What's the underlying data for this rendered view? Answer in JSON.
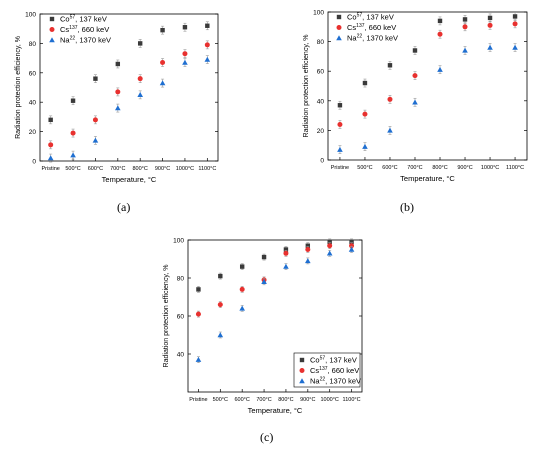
{
  "panel_labels": [
    "(a)",
    "(b)",
    "(c)"
  ],
  "chart_data": [
    {
      "type": "scatter",
      "title": "",
      "xlabel": "Temperature, °C",
      "ylabel": "Radiation protection efficiency, %",
      "categories": [
        "Pristine",
        "500°C",
        "600°C",
        "700°C",
        "800°C",
        "900°C",
        "1000°C",
        "1100°C"
      ],
      "ylim": [
        0,
        100
      ],
      "yticks": [
        0,
        20,
        40,
        60,
        80,
        100
      ],
      "legend_position": "top-left",
      "series": [
        {
          "name": "Co",
          "sup": "57",
          "suffix": ", 137 keV",
          "color": "#3a3a3a",
          "marker": "square",
          "values": [
            28,
            41,
            56,
            66,
            80,
            89,
            91,
            92
          ]
        },
        {
          "name": "Cs",
          "sup": "137",
          "suffix": ", 660 keV",
          "color": "#e8312f",
          "marker": "circle",
          "values": [
            11,
            19,
            28,
            47,
            56,
            67,
            73,
            79
          ]
        },
        {
          "name": "Na",
          "sup": "22",
          "suffix": ", 1370 keV",
          "color": "#1f6fd1",
          "marker": "triangle",
          "values": [
            2,
            4,
            14,
            36,
            45,
            53,
            67,
            69
          ]
        }
      ]
    },
    {
      "type": "scatter",
      "title": "",
      "xlabel": "Temperature, °C",
      "ylabel": "Radiation protection efficiency, %",
      "categories": [
        "Pristine",
        "500°C",
        "600°C",
        "700°C",
        "800°C",
        "900°C",
        "1000°C",
        "1100°C"
      ],
      "ylim": [
        0,
        100
      ],
      "yticks": [
        0,
        20,
        40,
        60,
        80,
        100
      ],
      "legend_position": "top-left",
      "series": [
        {
          "name": "Co",
          "sup": "57",
          "suffix": ", 137 keV",
          "color": "#3a3a3a",
          "marker": "square",
          "values": [
            37,
            52,
            64,
            74,
            94,
            95,
            96,
            97
          ]
        },
        {
          "name": "Cs",
          "sup": "137",
          "suffix": ", 660 keV",
          "color": "#e8312f",
          "marker": "circle",
          "values": [
            24,
            31,
            41,
            57,
            85,
            90,
            91,
            92
          ]
        },
        {
          "name": "Na",
          "sup": "22",
          "suffix": ", 1370 keV",
          "color": "#1f6fd1",
          "marker": "triangle",
          "values": [
            7,
            9,
            20,
            39,
            61,
            74,
            76,
            76
          ]
        }
      ]
    },
    {
      "type": "scatter",
      "title": "",
      "xlabel": "Temperature, °C",
      "ylabel": "Radiation protection efficiency, %",
      "categories": [
        "Pristine",
        "500°C",
        "600°C",
        "700°C",
        "800°C",
        "900°C",
        "1000°C",
        "1100°C"
      ],
      "ylim": [
        20,
        100
      ],
      "yticks": [
        40,
        60,
        80,
        100
      ],
      "legend_position": "bottom-right",
      "series": [
        {
          "name": "Co",
          "sup": "57",
          "suffix": ", 137 keV",
          "color": "#3a3a3a",
          "marker": "square",
          "values": [
            74,
            81,
            86,
            91,
            95,
            97,
            99,
            99
          ]
        },
        {
          "name": "Cs",
          "sup": "137",
          "suffix": ", 660 keV",
          "color": "#e8312f",
          "marker": "circle",
          "values": [
            61,
            66,
            74,
            79,
            93,
            95,
            97,
            97
          ]
        },
        {
          "name": "Na",
          "sup": "22",
          "suffix": ", 1370 keV",
          "color": "#1f6fd1",
          "marker": "triangle",
          "values": [
            37,
            50,
            64,
            78,
            86,
            89,
            93,
            95
          ]
        }
      ]
    }
  ]
}
